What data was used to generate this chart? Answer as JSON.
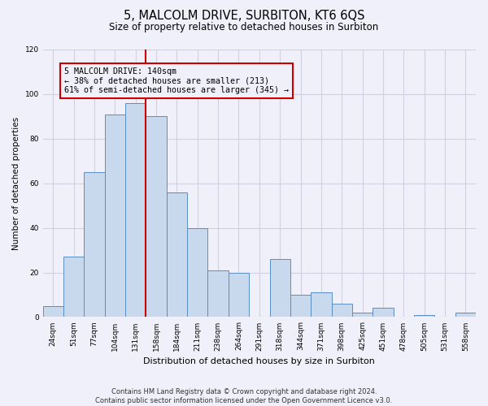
{
  "title": "5, MALCOLM DRIVE, SURBITON, KT6 6QS",
  "subtitle": "Size of property relative to detached houses in Surbiton",
  "xlabel": "Distribution of detached houses by size in Surbiton",
  "ylabel": "Number of detached properties",
  "categories": [
    "24sqm",
    "51sqm",
    "77sqm",
    "104sqm",
    "131sqm",
    "158sqm",
    "184sqm",
    "211sqm",
    "238sqm",
    "264sqm",
    "291sqm",
    "318sqm",
    "344sqm",
    "371sqm",
    "398sqm",
    "425sqm",
    "451sqm",
    "478sqm",
    "505sqm",
    "531sqm",
    "558sqm"
  ],
  "values": [
    5,
    27,
    65,
    91,
    96,
    90,
    56,
    40,
    21,
    20,
    0,
    26,
    10,
    11,
    6,
    2,
    4,
    0,
    1,
    0,
    2
  ],
  "bar_color": "#c8d9ee",
  "bar_edge_color": "#5b8ec4",
  "marker_label": "5 MALCOLM DRIVE: 140sqm",
  "annotation_line1": "← 38% of detached houses are smaller (213)",
  "annotation_line2": "61% of semi-detached houses are larger (345) →",
  "marker_color": "#cc0000",
  "ylim": [
    0,
    120
  ],
  "yticks": [
    0,
    20,
    40,
    60,
    80,
    100,
    120
  ],
  "footnote1": "Contains HM Land Registry data © Crown copyright and database right 2024.",
  "footnote2": "Contains public sector information licensed under the Open Government Licence v3.0.",
  "background_color": "#f0f0fa",
  "grid_color": "#d0d0e0"
}
